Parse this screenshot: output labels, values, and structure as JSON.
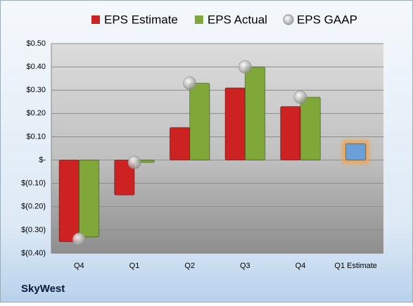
{
  "chart_data": {
    "type": "bar",
    "categories": [
      "Q4",
      "Q1",
      "Q2",
      "Q3",
      "Q4",
      "Q1 Estimate"
    ],
    "series": [
      {
        "name": "EPS Estimate",
        "color": "#cc2222",
        "values": [
          -0.35,
          -0.15,
          0.14,
          0.31,
          0.23,
          0.07
        ],
        "colors": [
          "#cc2222",
          "#cc2222",
          "#cc2222",
          "#cc2222",
          "#cc2222",
          "#6a9fd8"
        ]
      },
      {
        "name": "EPS Actual",
        "color": "#7fa838",
        "values": [
          -0.33,
          -0.01,
          0.33,
          0.4,
          0.27,
          null
        ]
      },
      {
        "name": "EPS GAAP",
        "color": "#a8a8a8",
        "mark": "circle",
        "values": [
          -0.34,
          -0.01,
          0.33,
          0.4,
          0.27,
          null
        ]
      }
    ],
    "ylim": [
      -0.4,
      0.5
    ],
    "yticks": [
      {
        "value": 0.5,
        "label": "$0.50"
      },
      {
        "value": 0.4,
        "label": "$0.40"
      },
      {
        "value": 0.3,
        "label": "$0.30"
      },
      {
        "value": 0.2,
        "label": "$0.20"
      },
      {
        "value": 0.1,
        "label": "$0.10"
      },
      {
        "value": 0,
        "label": "$-"
      },
      {
        "value": -0.1,
        "label": "$(0.10)"
      },
      {
        "value": -0.2,
        "label": "$(0.20)"
      },
      {
        "value": -0.3,
        "label": "$(0.30)"
      },
      {
        "value": -0.4,
        "label": "$(0.40)"
      }
    ],
    "grid": true,
    "legend": "top",
    "footer": "SkyWest"
  }
}
